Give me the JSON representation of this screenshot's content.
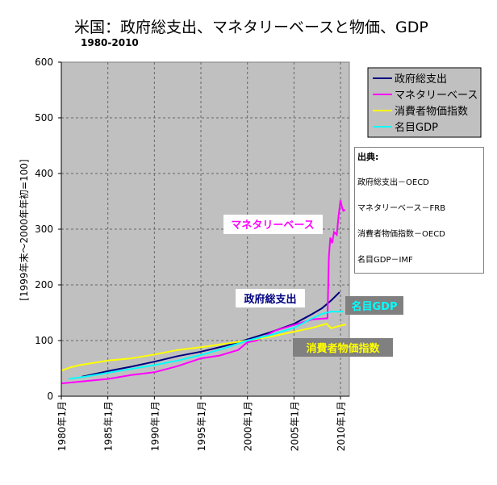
{
  "chart_data": {
    "type": "line",
    "title": "米国：政府総支出、マネタリーベースと物価、GDP",
    "subtitle": "1980-2010",
    "ylabel": "[1999年末～2000年年初=100]",
    "xlabel": "",
    "ylim": [
      0,
      600
    ],
    "yticks": [
      "0",
      "100",
      "200",
      "300",
      "400",
      "500",
      "600"
    ],
    "xlim": [
      1980,
      2010.95
    ],
    "xticks": [
      {
        "year": 1980,
        "label": "1980年1月"
      },
      {
        "year": 1985,
        "label": "1985年1月"
      },
      {
        "year": 1990,
        "label": "1990年1月"
      },
      {
        "year": 1995,
        "label": "1995年1月"
      },
      {
        "year": 2000,
        "label": "2000年1月"
      },
      {
        "year": 2005,
        "label": "2005年1月"
      },
      {
        "year": 2010,
        "label": "2010年1月"
      }
    ],
    "grid": true,
    "background": "#c0c0c0",
    "legend_position": "right",
    "series": [
      {
        "name": "政府総支出",
        "color": "#000080",
        "points": [
          [
            1982.2,
            35
          ],
          [
            1985,
            45
          ],
          [
            1987.5,
            53
          ],
          [
            1990,
            62
          ],
          [
            1992.5,
            72
          ],
          [
            1995,
            80
          ],
          [
            1997.5,
            90
          ],
          [
            2000,
            102
          ],
          [
            2002.5,
            115
          ],
          [
            2005,
            130
          ],
          [
            2007,
            148
          ],
          [
            2008,
            158
          ],
          [
            2009,
            172
          ],
          [
            2009.9,
            187
          ]
        ]
      },
      {
        "name": "マネタリーベース",
        "color": "#ff00ff",
        "points": [
          [
            1980,
            23
          ],
          [
            1982.5,
            27
          ],
          [
            1985,
            31
          ],
          [
            1987.5,
            38
          ],
          [
            1990,
            43
          ],
          [
            1992.5,
            54
          ],
          [
            1995,
            68
          ],
          [
            1997,
            73
          ],
          [
            1999,
            83
          ],
          [
            2000,
            97
          ],
          [
            2001,
            100
          ],
          [
            2003,
            118
          ],
          [
            2005,
            128
          ],
          [
            2007,
            138
          ],
          [
            2008.6,
            140
          ],
          [
            2008.75,
            250
          ],
          [
            2008.9,
            285
          ],
          [
            2009.1,
            275
          ],
          [
            2009.3,
            295
          ],
          [
            2009.6,
            290
          ],
          [
            2009.8,
            325
          ],
          [
            2010,
            352
          ],
          [
            2010.15,
            340
          ],
          [
            2010.3,
            333
          ],
          [
            2010.5,
            335
          ]
        ]
      },
      {
        "name": "消費者物価指数",
        "color": "#ffff00",
        "points": [
          [
            1980,
            46
          ],
          [
            1981,
            52
          ],
          [
            1982,
            56
          ],
          [
            1985,
            64
          ],
          [
            1987.5,
            68
          ],
          [
            1990,
            75
          ],
          [
            1992.5,
            83
          ],
          [
            1995,
            88
          ],
          [
            1997.5,
            94
          ],
          [
            2000,
            100
          ],
          [
            2002.5,
            107
          ],
          [
            2005,
            116
          ],
          [
            2007,
            123
          ],
          [
            2008.5,
            130
          ],
          [
            2009,
            122
          ],
          [
            2010,
            127
          ],
          [
            2010.6,
            129
          ]
        ]
      },
      {
        "name": "名目GDP",
        "color": "#00ffff",
        "points": [
          [
            1980.8,
            31
          ],
          [
            1982.5,
            35
          ],
          [
            1985,
            42
          ],
          [
            1987.5,
            49
          ],
          [
            1990,
            56
          ],
          [
            1992.5,
            64
          ],
          [
            1995,
            74
          ],
          [
            1997.5,
            86
          ],
          [
            2000,
            100
          ],
          [
            2002.5,
            110
          ],
          [
            2005,
            123
          ],
          [
            2007,
            140
          ],
          [
            2008,
            148
          ],
          [
            2009,
            152
          ],
          [
            2010.3,
            152
          ]
        ]
      }
    ],
    "annotations": [
      {
        "text": "マネタリーベース",
        "color": "#ff00ff",
        "bg": "#ffffff"
      },
      {
        "text": "政府総支出",
        "color": "#000080",
        "bg": "#ffffff"
      },
      {
        "text": "名目GDP",
        "color": "#00ffff",
        "bg": "#808080"
      },
      {
        "text": "消費者物価指数",
        "color": "#ffff00",
        "bg": "#808080"
      }
    ]
  },
  "sources": {
    "heading": "出典:",
    "items": [
      "政府総支出－OECD",
      "マネタリーベース－FRB",
      "消費者物価指数－OECD",
      "名目GDP－IMF"
    ]
  }
}
